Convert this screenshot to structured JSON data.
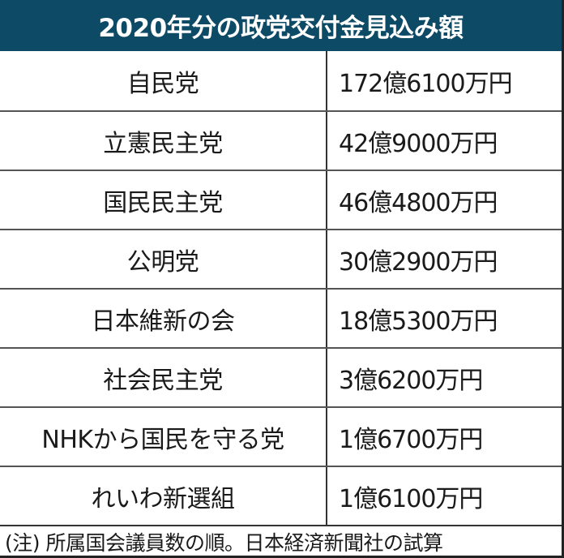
{
  "title": "2020年分の政党交付金見込み額",
  "colors": {
    "header_bg": "#0d4a66",
    "header_text": "#ffffff",
    "text": "#1a1a1a",
    "grid": "#333333"
  },
  "rows": [
    {
      "party": "自民党",
      "amount": "172億6100万円"
    },
    {
      "party": "立憲民主党",
      "amount": "42億9000万円"
    },
    {
      "party": "国民民主党",
      "amount": "46億4800万円"
    },
    {
      "party": "公明党",
      "amount": "30億2900万円"
    },
    {
      "party": "日本維新の会",
      "amount": "18億5300万円"
    },
    {
      "party": "社会民主党",
      "amount": "3億6200万円"
    },
    {
      "party": "NHKから国民を守る党",
      "amount": "1億6700万円"
    },
    {
      "party": "れいわ新選組",
      "amount": "1億6100万円"
    }
  ],
  "note": "(注) 所属国会議員数の順。日本経済新聞社の試算"
}
